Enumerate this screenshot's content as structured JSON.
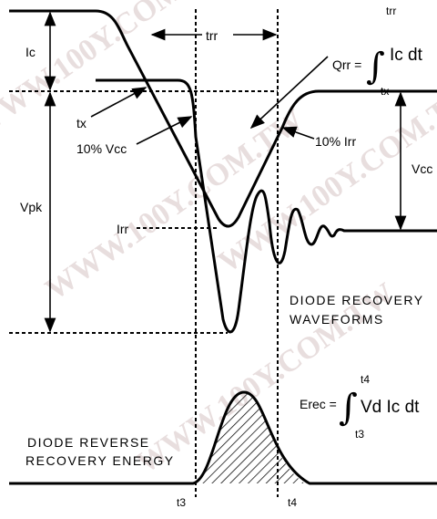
{
  "diagram": {
    "ic_label": "Ic",
    "trr_label": "trr",
    "qrr_formula": {
      "lhs": "Qrr =",
      "upper": "trr",
      "integrand": "Ic dt",
      "lower": "tx"
    },
    "tx_label": "tx",
    "vcc10_label": "10% Vcc",
    "irr10_label": "10% Irr",
    "vcc_label": "Vcc",
    "vpk_label": "Vpk",
    "irr_label": "Irr",
    "waveform_caption": [
      "DIODE RECOVERY",
      "WAVEFORMS"
    ],
    "erec_formula": {
      "lhs": "Erec =",
      "upper": "t4",
      "integrand": "Vd Ic dt",
      "lower": "t3"
    },
    "energy_caption": [
      "DIODE REVERSE",
      "RECOVERY ENERGY"
    ],
    "t3_label": "t3",
    "t4_label": "t4",
    "watermark": "WWW.100Y.COM.TW"
  }
}
